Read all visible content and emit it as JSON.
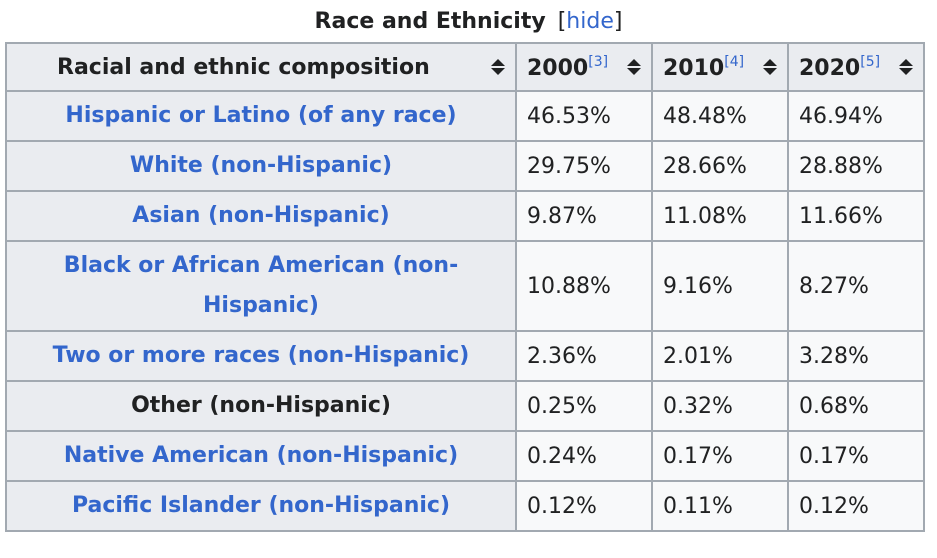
{
  "caption": {
    "title": "Race and Ethnicity",
    "hide_open": "[",
    "hide_label": "hide",
    "hide_close": "]"
  },
  "table": {
    "headers": [
      {
        "label": "Racial and ethnic composition",
        "ref": ""
      },
      {
        "label": "2000",
        "ref": "[3]"
      },
      {
        "label": "2010",
        "ref": "[4]"
      },
      {
        "label": "2020",
        "ref": "[5]"
      }
    ],
    "rows": [
      {
        "label": "Hispanic or Latino (of any race)",
        "link": true,
        "values": [
          "46.53%",
          "48.48%",
          "46.94%"
        ]
      },
      {
        "label": "White (non-Hispanic)",
        "link": true,
        "values": [
          "29.75%",
          "28.66%",
          "28.88%"
        ]
      },
      {
        "label": "Asian (non-Hispanic)",
        "link": true,
        "values": [
          "9.87%",
          "11.08%",
          "11.66%"
        ]
      },
      {
        "label": "Black or African American (non-Hispanic)",
        "link": true,
        "values": [
          "10.88%",
          "9.16%",
          "8.27%"
        ]
      },
      {
        "label": "Two or more races (non-Hispanic)",
        "link": true,
        "values": [
          "2.36%",
          "2.01%",
          "3.28%"
        ]
      },
      {
        "label": "Other (non-Hispanic)",
        "link": false,
        "values": [
          "0.25%",
          "0.32%",
          "0.68%"
        ]
      },
      {
        "label": "Native American (non-Hispanic)",
        "link": true,
        "values": [
          "0.24%",
          "0.17%",
          "0.17%"
        ]
      },
      {
        "label": "Pacific Islander (non-Hispanic)",
        "link": true,
        "values": [
          "0.12%",
          "0.11%",
          "0.12%"
        ]
      }
    ]
  },
  "colors": {
    "link": "#3366cc",
    "header_bg": "#eaecf0",
    "cell_bg": "#f8f9fa",
    "border": "#a2a9b1",
    "text": "#202122"
  }
}
